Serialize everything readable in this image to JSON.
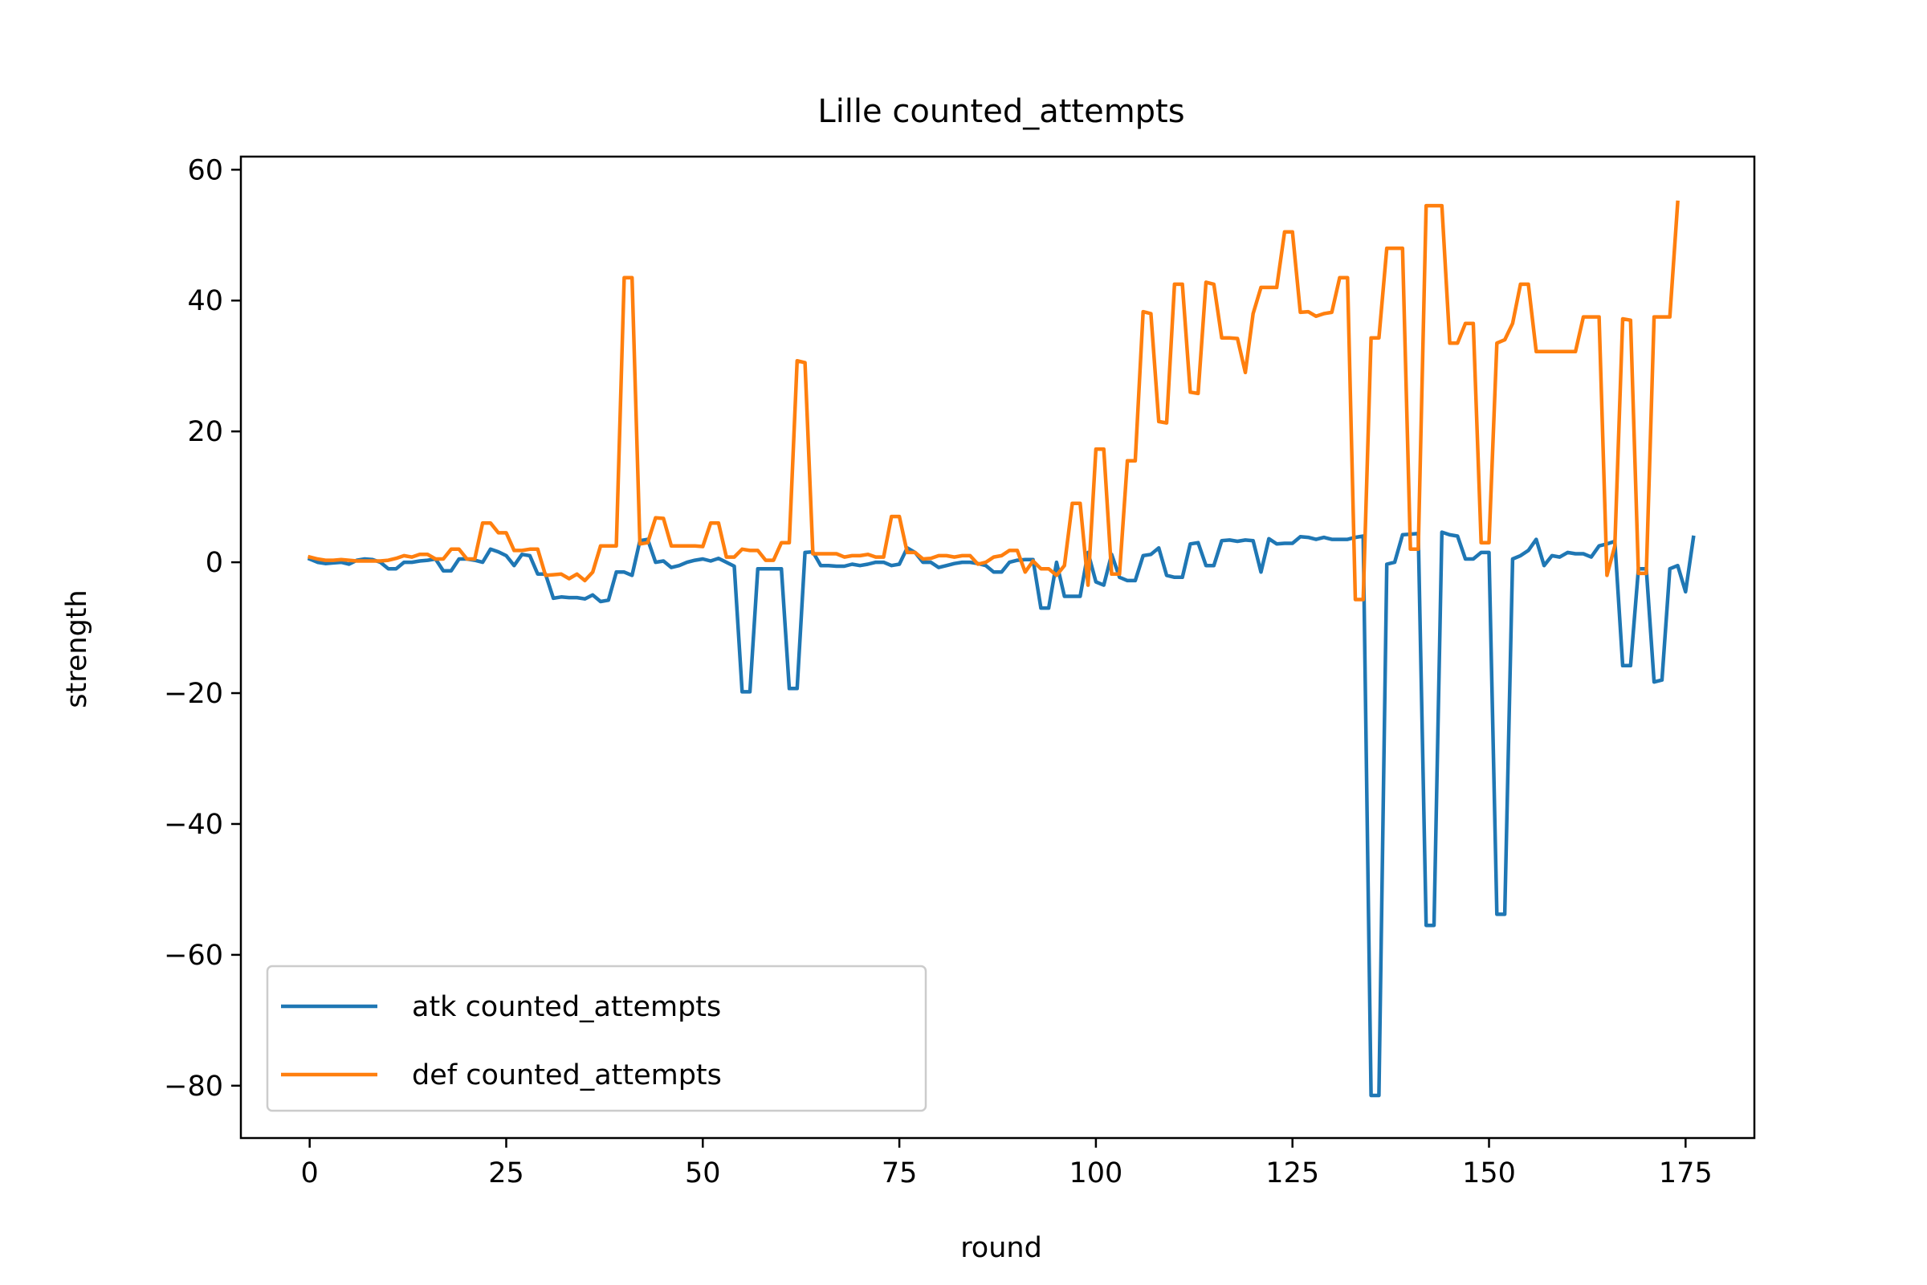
{
  "chart_data": {
    "type": "line",
    "title": "Lille counted_attempts",
    "xlabel": "round",
    "ylabel": "strength",
    "xlim": [
      -8.75,
      183.75
    ],
    "ylim": [
      -88,
      62
    ],
    "xticks": [
      0,
      25,
      50,
      75,
      100,
      125,
      150,
      175
    ],
    "yticks": [
      60,
      40,
      20,
      0,
      -20,
      -40,
      -60,
      -80
    ],
    "ytick_labels": [
      "60",
      "40",
      "20",
      "0",
      "−20",
      "−40",
      "−60",
      "−80"
    ],
    "grid": false,
    "legend_position": "lower-left",
    "series": [
      {
        "name": "atk counted_attempts",
        "color": "#1f77b4",
        "values": [
          0.5,
          0,
          -0.2,
          -0.1,
          0,
          -0.3,
          0.3,
          0.5,
          0.4,
          0,
          -1,
          -1,
          0,
          0,
          0.2,
          0.3,
          0.5,
          -1.3,
          -1.3,
          0.5,
          0.5,
          0.3,
          0,
          2,
          1.6,
          1,
          -0.5,
          1.2,
          1,
          -1.8,
          -1.8,
          -5.5,
          -5.3,
          -5.4,
          -5.4,
          -5.6,
          -5,
          -6,
          -5.8,
          -1.5,
          -1.5,
          -2,
          3.3,
          3.5,
          0,
          0.2,
          -0.8,
          -0.5,
          0,
          0.3,
          0.5,
          0.2,
          0.6,
          0,
          -0.6,
          -19.8,
          -19.8,
          -1,
          -1,
          -1,
          -1,
          -19.3,
          -19.3,
          1.5,
          1.6,
          -0.5,
          -0.5,
          -0.6,
          -0.6,
          -0.3,
          -0.5,
          -0.3,
          0,
          0,
          -0.5,
          -0.3,
          2.2,
          1.5,
          0,
          0,
          -0.8,
          -0.5,
          -0.2,
          0,
          0,
          -0.2,
          -0.5,
          -1.5,
          -1.5,
          0,
          0.3,
          0.4,
          0.4,
          -7,
          -7,
          0,
          -5.2,
          -5.2,
          -5.2,
          1.5,
          -3,
          -3.5,
          1.2,
          -2.3,
          -2.8,
          -2.8,
          1,
          1.2,
          2.2,
          -2,
          -2.3,
          -2.3,
          2.8,
          3,
          -0.5,
          -0.5,
          3.3,
          3.4,
          3.2,
          3.4,
          3.3,
          -1.5,
          3.6,
          2.8,
          2.9,
          2.9,
          3.9,
          3.8,
          3.5,
          3.8,
          3.5,
          3.5,
          3.5,
          3.8,
          4,
          -81.5,
          -81.5,
          -0.3,
          0,
          4.2,
          4.3,
          4.4,
          -55.5,
          -55.5,
          4.6,
          4.2,
          4,
          0.5,
          0.5,
          1.5,
          1.5,
          -53.8,
          -53.8,
          0.5,
          1,
          1.8,
          3.5,
          -0.5,
          1,
          0.8,
          1.5,
          1.3,
          1.3,
          0.8,
          2.5,
          2.8,
          3.2,
          -15.8,
          -15.8,
          -1,
          -1,
          -18.3,
          -18,
          -1,
          -0.5,
          -4.5,
          3.8
        ]
      },
      {
        "name": "def counted_attempts",
        "color": "#ff7f0e",
        "values": [
          0.8,
          0.5,
          0.3,
          0.3,
          0.4,
          0.3,
          0.2,
          0.2,
          0.2,
          0.2,
          0.3,
          0.6,
          1,
          0.8,
          1.2,
          1.2,
          0.5,
          0.5,
          2,
          2,
          0.5,
          0.5,
          6,
          6,
          4.5,
          4.5,
          1.8,
          1.8,
          2,
          2,
          -2,
          -1.9,
          -1.8,
          -2.5,
          -1.8,
          -2.8,
          -1.5,
          2.5,
          2.5,
          2.5,
          43.5,
          43.5,
          2.8,
          3,
          6.8,
          6.7,
          2.5,
          2.5,
          2.5,
          2.5,
          2.4,
          6,
          6,
          0.8,
          0.8,
          2,
          1.8,
          1.8,
          0.3,
          0.3,
          3,
          3,
          30.8,
          30.5,
          1.3,
          1.3,
          1.3,
          1.3,
          0.8,
          1,
          1,
          1.2,
          0.8,
          0.8,
          7,
          7,
          1.5,
          1.5,
          0.5,
          0.6,
          1,
          1,
          0.8,
          1,
          1,
          -0.3,
          0,
          0.8,
          1,
          1.8,
          1.8,
          -1.5,
          0.2,
          -1,
          -1,
          -2,
          -0.5,
          9,
          9,
          -3.5,
          17.3,
          17.3,
          -1.8,
          -1.8,
          15.5,
          15.5,
          38.3,
          38,
          21.5,
          21.3,
          42.5,
          42.5,
          26,
          25.8,
          42.8,
          42.5,
          34.3,
          34.3,
          34.2,
          29,
          38,
          42,
          42,
          42,
          50.5,
          50.5,
          38.2,
          38.3,
          37.6,
          38,
          38.2,
          43.5,
          43.5,
          -5.7,
          -5.7,
          34.3,
          34.3,
          48,
          48,
          48,
          2,
          2,
          54.5,
          54.5,
          54.5,
          33.5,
          33.5,
          36.5,
          36.5,
          3,
          3,
          33.5,
          34,
          36.5,
          42.5,
          42.5,
          32.2,
          32.2,
          32.2,
          32.2,
          32.2,
          32.2,
          37.5,
          37.5,
          37.5,
          -2,
          2.5,
          37.2,
          37,
          -1.7,
          -1.7,
          37.5,
          37.5,
          37.5,
          55
        ]
      }
    ]
  }
}
